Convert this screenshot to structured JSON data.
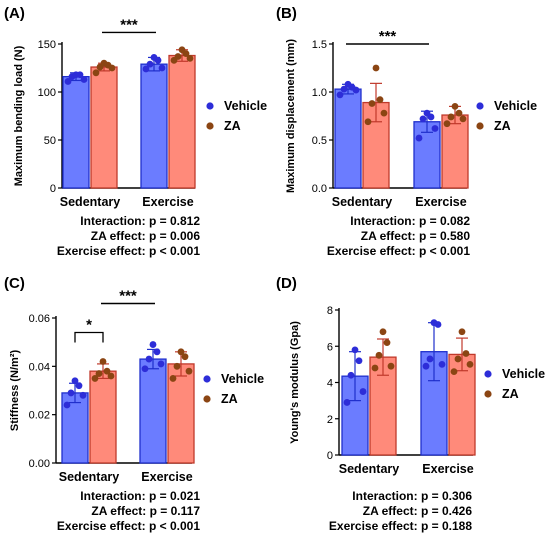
{
  "colors": {
    "vehicle_bar": "#6b7cff",
    "vehicle_edge": "#1f2fcc",
    "vehicle_dot": "#2d2dd8",
    "za_bar": "#ff8a7a",
    "za_edge": "#c0392b",
    "za_dot": "#8b4513"
  },
  "chart_data": [
    {
      "panel_label": "(A)",
      "type": "bar",
      "ylabel": "Maximum bending load (N)",
      "ylim": [
        0,
        150
      ],
      "yticks": [
        0,
        50,
        100,
        150
      ],
      "categories": [
        "Sedentary",
        "Exercise"
      ],
      "series": [
        {
          "name": "Vehicle",
          "values": [
            116,
            129
          ],
          "sd": [
            4,
            7
          ],
          "points": [
            [
              111,
              113,
              116,
              118,
              118
            ],
            [
              124,
              125,
              129,
              133,
              136
            ]
          ]
        },
        {
          "name": "ZA",
          "values": [
            126,
            138
          ],
          "sd": [
            4,
            6
          ],
          "points": [
            [
              120,
              125,
              126,
              128,
              130
            ],
            [
              133,
              135,
              137,
              140,
              144
            ]
          ]
        }
      ],
      "legend": [
        "Vehicle",
        "ZA"
      ],
      "significance": [
        {
          "label": "***",
          "from": 0,
          "to": 1,
          "series_from": 1,
          "series_to": 0,
          "y": 162
        }
      ],
      "stats": [
        "Interaction: p = 0.812",
        "ZA effect: p = 0.006",
        "Exercise effect: p < 0.001"
      ]
    },
    {
      "panel_label": "(B)",
      "type": "bar",
      "ylabel": "Maximum displacement (mm)",
      "ylim": [
        0,
        1.5
      ],
      "yticks": [
        "0.0",
        "0.5",
        "1.0",
        "1.5"
      ],
      "categories": [
        "Sedentary",
        "Exercise"
      ],
      "series": [
        {
          "name": "Vehicle",
          "values": [
            1.03,
            0.69
          ],
          "sd": [
            0.05,
            0.11
          ],
          "points": [
            [
              0.97,
              1.02,
              1.03,
              1.05,
              1.08
            ],
            [
              0.52,
              0.62,
              0.72,
              0.74,
              0.78
            ]
          ]
        },
        {
          "name": "ZA",
          "values": [
            0.89,
            0.76
          ],
          "sd": [
            0.2,
            0.09
          ],
          "points": [
            [
              0.69,
              0.78,
              0.88,
              0.92,
              1.25
            ],
            [
              0.67,
              0.72,
              0.74,
              0.78,
              0.85
            ]
          ]
        }
      ],
      "legend": [
        "Vehicle",
        "ZA"
      ],
      "significance": [
        {
          "label": "***",
          "from": 0,
          "to": 1,
          "series_from": 0,
          "series_to": 0,
          "y": 1.5
        }
      ],
      "stats": [
        "Interaction: p = 0.082",
        "ZA effect: p = 0.580",
        "Exercise effect: p < 0.001"
      ]
    },
    {
      "panel_label": "(C)",
      "type": "bar",
      "ylabel": "Stiffness (N/m²)",
      "ylim": [
        0,
        0.06
      ],
      "yticks": [
        "0.00",
        "0.02",
        "0.04",
        "0.06"
      ],
      "categories": [
        "Sedentary",
        "Exercise"
      ],
      "series": [
        {
          "name": "Vehicle",
          "values": [
            0.029,
            0.043
          ],
          "sd": [
            0.004,
            0.004
          ],
          "points": [
            [
              0.024,
              0.028,
              0.029,
              0.032,
              0.034
            ],
            [
              0.039,
              0.041,
              0.043,
              0.046,
              0.049
            ]
          ]
        },
        {
          "name": "ZA",
          "values": [
            0.038,
            0.041
          ],
          "sd": [
            0.003,
            0.005
          ],
          "points": [
            [
              0.035,
              0.036,
              0.037,
              0.038,
              0.042
            ],
            [
              0.035,
              0.038,
              0.04,
              0.044,
              0.046
            ]
          ]
        }
      ],
      "legend": [
        "Vehicle",
        "ZA"
      ],
      "significance": [
        {
          "label": "*",
          "from": 0,
          "to": 0,
          "series_from": 0,
          "series_to": 1,
          "y": 0.054
        },
        {
          "label": "***",
          "from": 0,
          "to": 1,
          "series_from": 1,
          "series_to": 0,
          "y": 0.066
        }
      ],
      "stats": [
        "Interaction: p = 0.021",
        "ZA effect: p = 0.117",
        "Exercise effect: p < 0.001"
      ]
    },
    {
      "panel_label": "(D)",
      "type": "bar",
      "ylabel": "Young's modulus (Gpa)",
      "ylim": [
        0,
        8
      ],
      "yticks": [
        0,
        2,
        4,
        6,
        8
      ],
      "categories": [
        "Sedentary",
        "Exercise"
      ],
      "series": [
        {
          "name": "Vehicle",
          "values": [
            4.35,
            5.7
          ],
          "sd": [
            1.35,
            1.6
          ],
          "points": [
            [
              2.9,
              3.5,
              4.4,
              5.2,
              5.8
            ],
            [
              4.9,
              5.0,
              5.3,
              7.2,
              7.3
            ]
          ]
        },
        {
          "name": "ZA",
          "values": [
            5.4,
            5.55
          ],
          "sd": [
            1.0,
            0.9
          ],
          "points": [
            [
              4.8,
              4.9,
              5.5,
              6.2,
              6.8
            ],
            [
              4.6,
              5.0,
              5.3,
              5.6,
              6.8
            ]
          ]
        }
      ],
      "legend": [
        "Vehicle",
        "ZA"
      ],
      "significance": [],
      "stats": [
        "Interaction: p = 0.306",
        "ZA effect: p = 0.426",
        "Exercise effect: p = 0.188"
      ]
    }
  ]
}
